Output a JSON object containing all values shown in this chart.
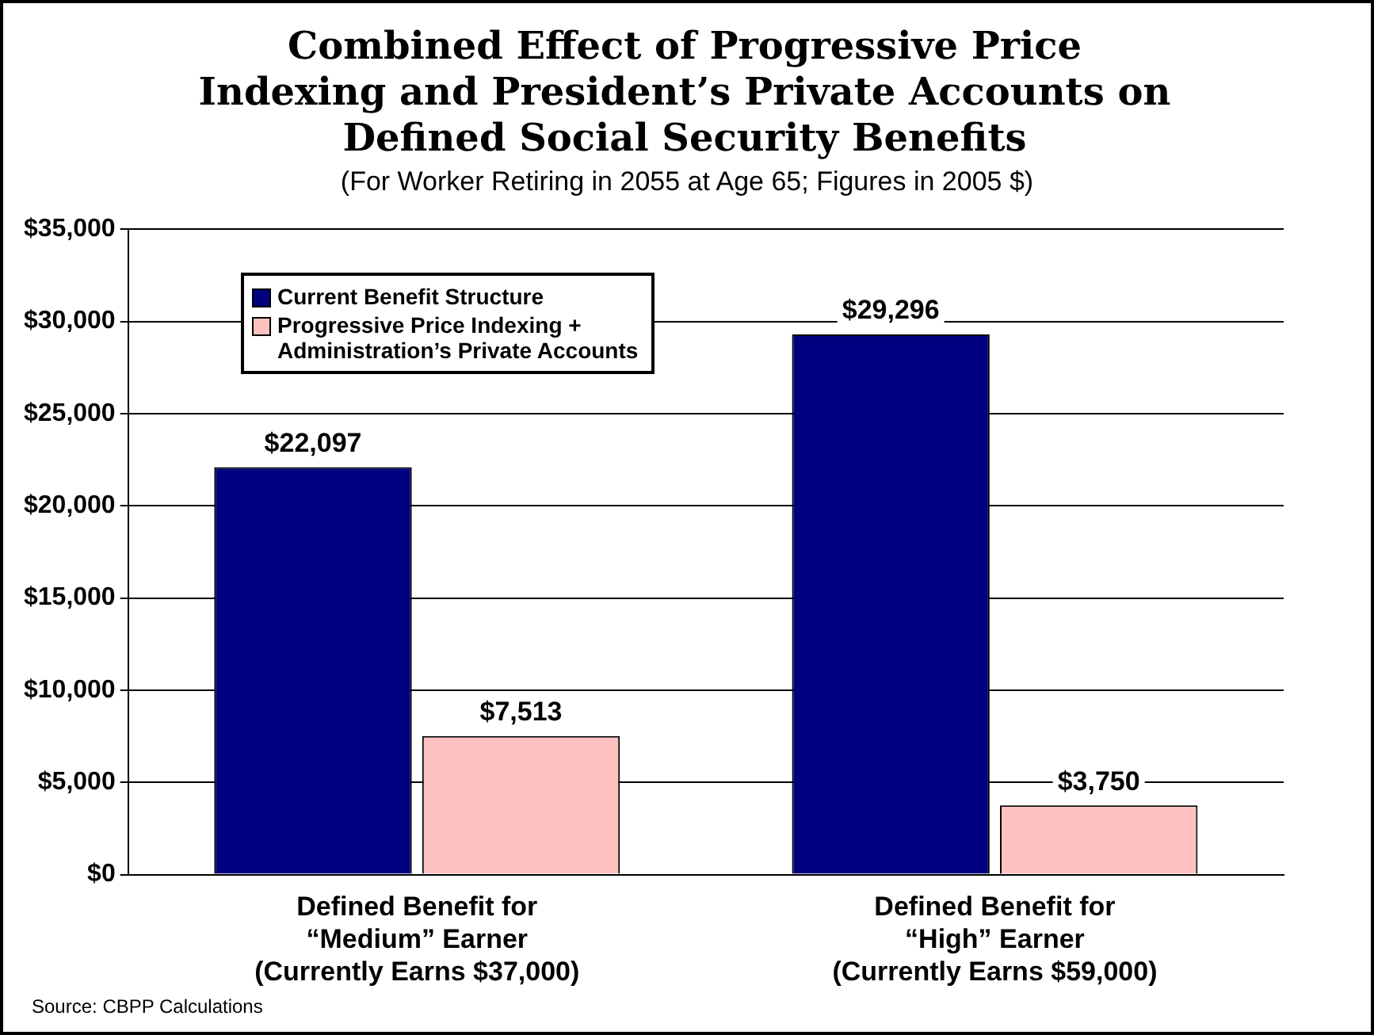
{
  "chart_data": {
    "type": "bar",
    "title": "Combined Effect of Progressive Price Indexing and President’s Private Accounts on Defined Social Security Benefits",
    "subtitle": "(For Worker Retiring in 2055 at Age 65; Figures in 2005 $)",
    "categories": [
      "Defined Benefit for\n“Medium” Earner\n(Currently Earns $37,000)",
      "Defined Benefit for\n“High” Earner\n(Currently Earns $59,000)"
    ],
    "series": [
      {
        "name": "Current Benefit Structure",
        "color": "#000080",
        "values": [
          22097,
          29296
        ],
        "value_labels": [
          "$22,097",
          "$29,296"
        ]
      },
      {
        "name": "Progressive Price Indexing +\nAdministration’s Private Accounts",
        "color": "#ffc0c0",
        "values": [
          7513,
          3750
        ],
        "value_labels": [
          "$7,513",
          "$3,750"
        ]
      }
    ],
    "ylim": [
      0,
      35000
    ],
    "yticks": [
      {
        "value": 0,
        "label": "$0"
      },
      {
        "value": 5000,
        "label": "$5,000"
      },
      {
        "value": 10000,
        "label": "$10,000"
      },
      {
        "value": 15000,
        "label": "$15,000"
      },
      {
        "value": 20000,
        "label": "$20,000"
      },
      {
        "value": 25000,
        "label": "$25,000"
      },
      {
        "value": 30000,
        "label": "$30,000"
      },
      {
        "value": 35000,
        "label": "$35,000"
      }
    ],
    "grid": "y",
    "legend": "top left",
    "annotations": [
      "Source: CBPP Calculations"
    ]
  }
}
